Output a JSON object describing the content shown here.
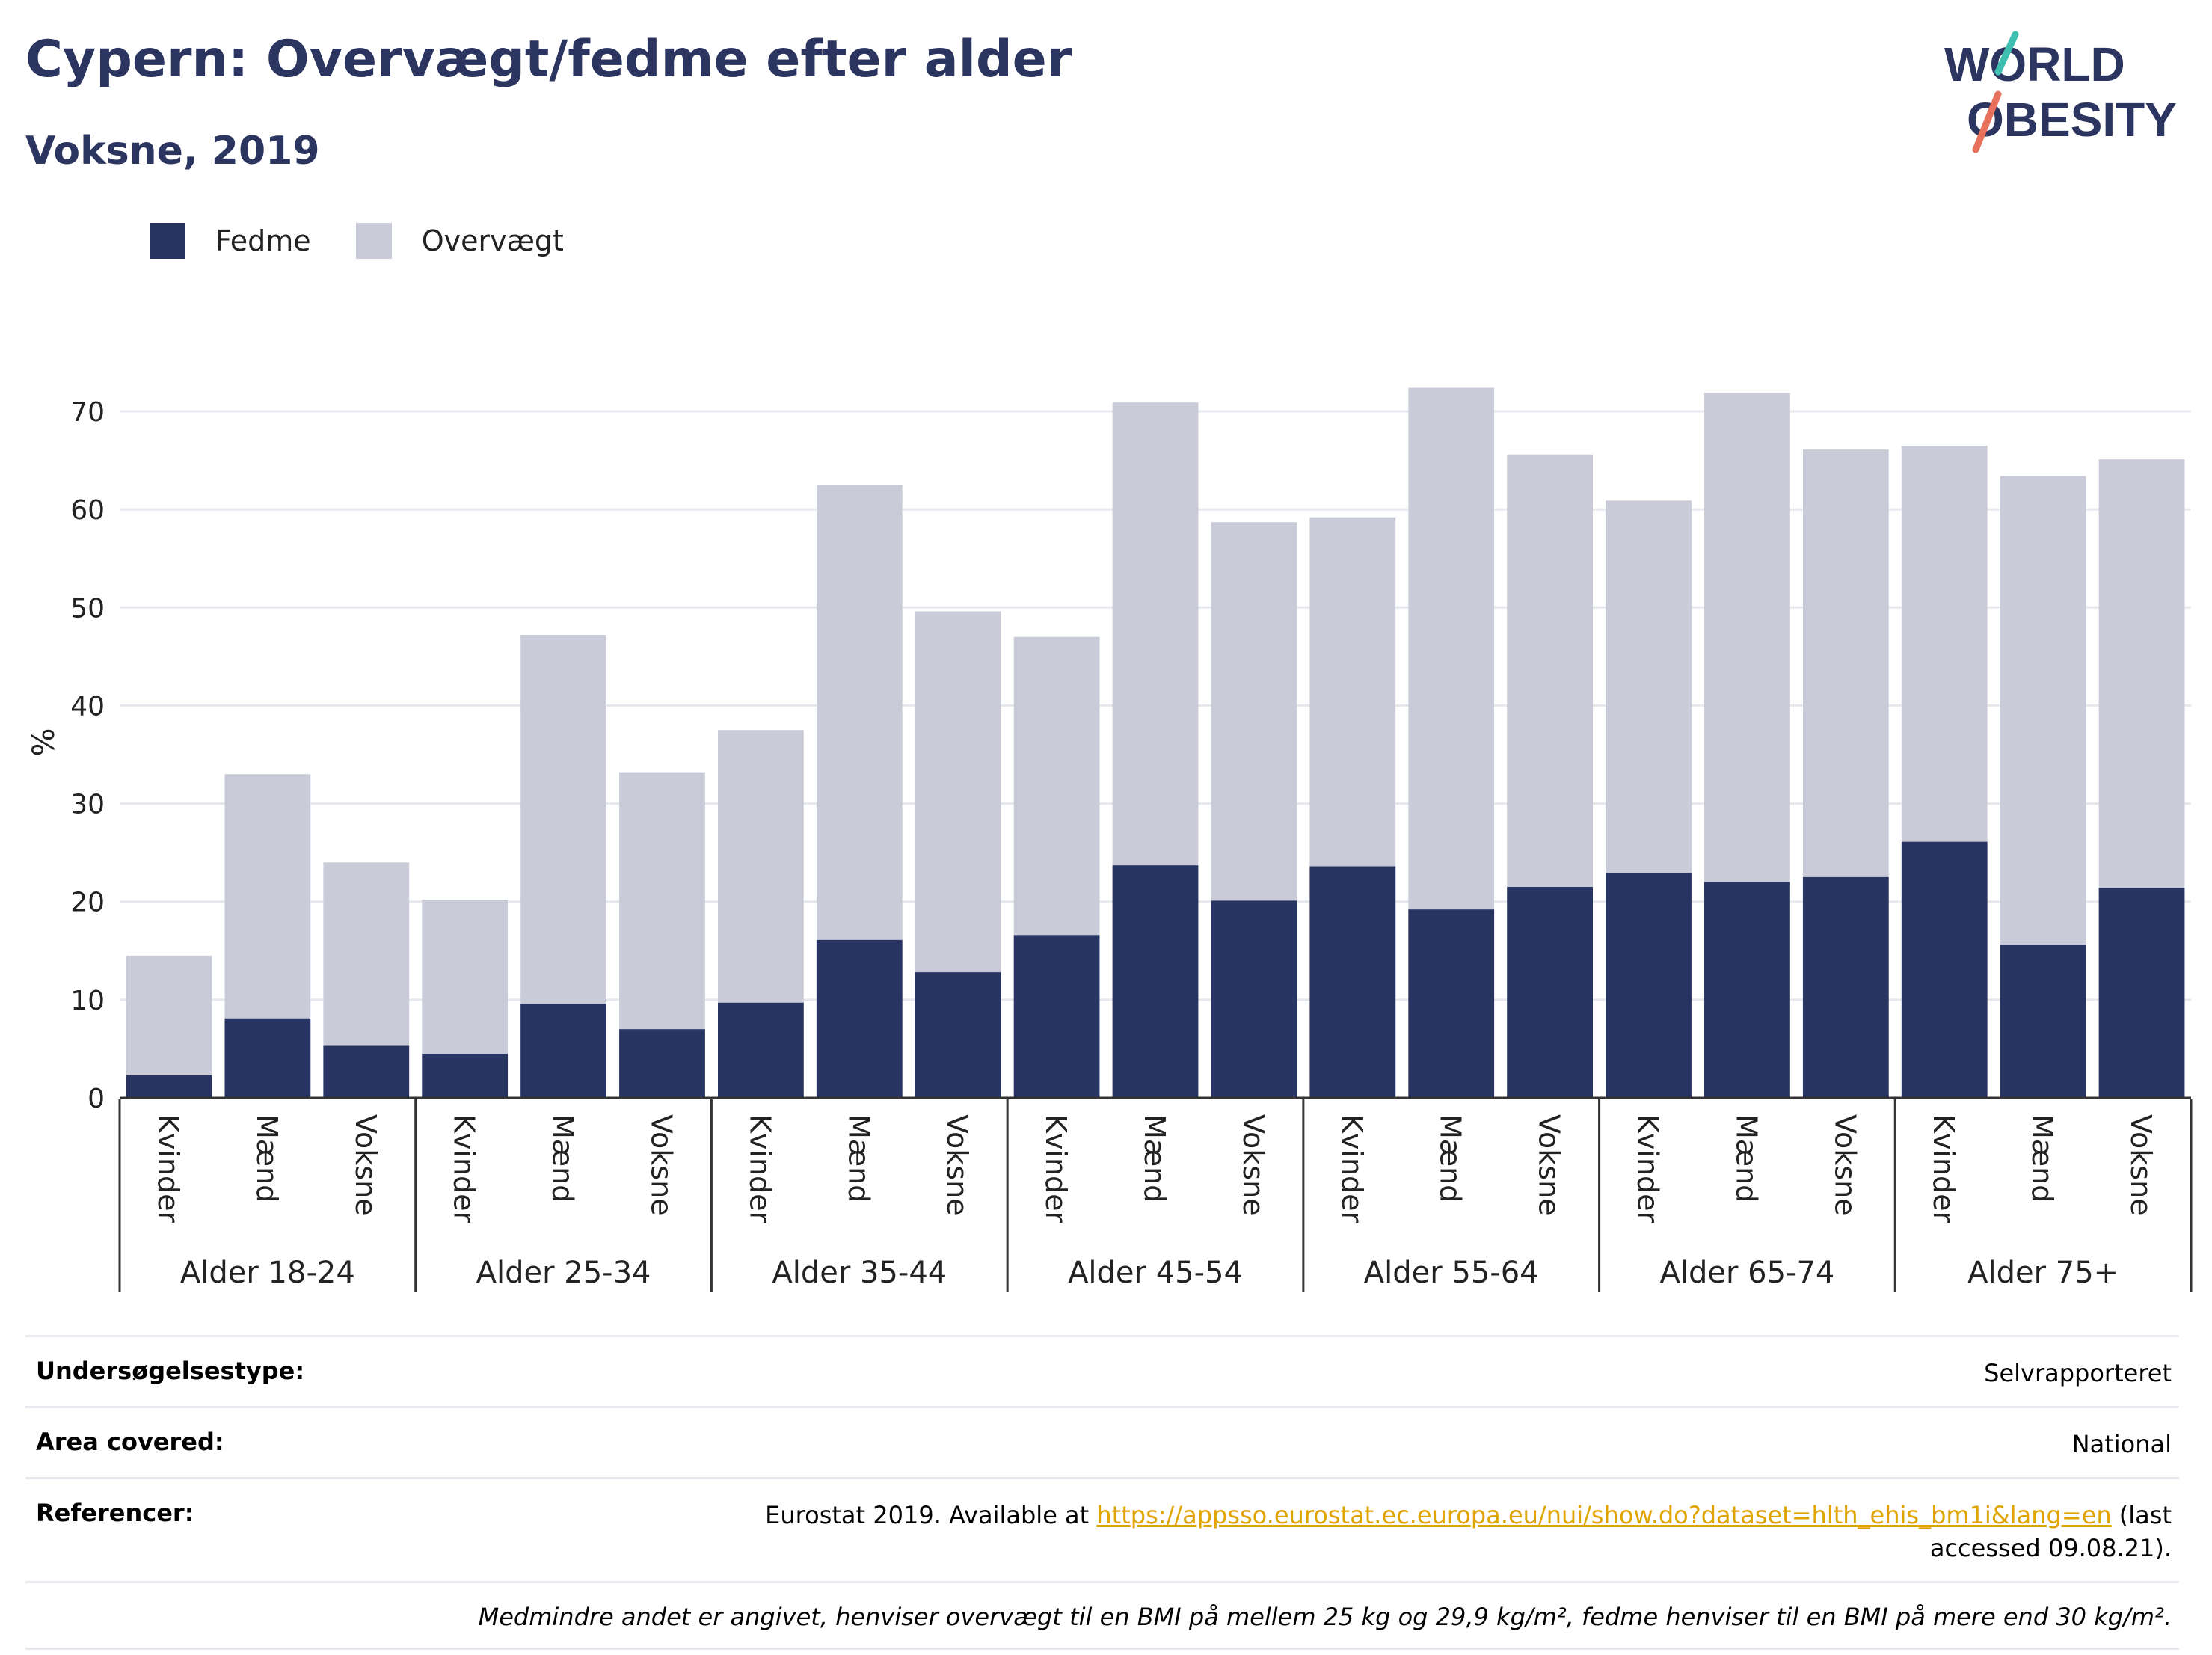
{
  "header": {
    "title": "Cypern: Overvægt/fedme efter alder",
    "subtitle": "Voksne, 2019"
  },
  "logo": {
    "line1": "WORLD",
    "line2": "OBESITY"
  },
  "colors": {
    "fedme": "#283462",
    "overvaegt": "#c9cbd8",
    "title": "#2b3560",
    "link": "#e0a400",
    "grid": "#e6e8ee"
  },
  "legend": [
    {
      "label": "Fedme",
      "color": "#283462"
    },
    {
      "label": "Overvægt",
      "color": "#c9cbd8"
    }
  ],
  "chart_data": {
    "type": "bar",
    "stacked": "overlay",
    "ylabel": "%",
    "ylim": [
      0,
      75
    ],
    "yticks": [
      0,
      10,
      20,
      30,
      40,
      50,
      60,
      70
    ],
    "grid": true,
    "legend_position": "top-left",
    "groups": [
      {
        "label": "Alder 18-24",
        "bars": [
          {
            "label": "Kvinder",
            "fedme": 2.3,
            "overvaegt": 14.5
          },
          {
            "label": "Mænd",
            "fedme": 8.1,
            "overvaegt": 33.0
          },
          {
            "label": "Voksne",
            "fedme": 5.3,
            "overvaegt": 24.0
          }
        ]
      },
      {
        "label": "Alder 25-34",
        "bars": [
          {
            "label": "Kvinder",
            "fedme": 4.5,
            "overvaegt": 20.2
          },
          {
            "label": "Mænd",
            "fedme": 9.6,
            "overvaegt": 47.2
          },
          {
            "label": "Voksne",
            "fedme": 7.0,
            "overvaegt": 33.2
          }
        ]
      },
      {
        "label": "Alder 35-44",
        "bars": [
          {
            "label": "Kvinder",
            "fedme": 9.7,
            "overvaegt": 37.5
          },
          {
            "label": "Mænd",
            "fedme": 16.1,
            "overvaegt": 62.5
          },
          {
            "label": "Voksne",
            "fedme": 12.8,
            "overvaegt": 49.6
          }
        ]
      },
      {
        "label": "Alder 45-54",
        "bars": [
          {
            "label": "Kvinder",
            "fedme": 16.6,
            "overvaegt": 47.0
          },
          {
            "label": "Mænd",
            "fedme": 23.7,
            "overvaegt": 70.9
          },
          {
            "label": "Voksne",
            "fedme": 20.1,
            "overvaegt": 58.7
          }
        ]
      },
      {
        "label": "Alder 55-64",
        "bars": [
          {
            "label": "Kvinder",
            "fedme": 23.6,
            "overvaegt": 59.2
          },
          {
            "label": "Mænd",
            "fedme": 19.2,
            "overvaegt": 72.4
          },
          {
            "label": "Voksne",
            "fedme": 21.5,
            "overvaegt": 65.6
          }
        ]
      },
      {
        "label": "Alder 65-74",
        "bars": [
          {
            "label": "Kvinder",
            "fedme": 22.9,
            "overvaegt": 60.9
          },
          {
            "label": "Mænd",
            "fedme": 22.0,
            "overvaegt": 71.9
          },
          {
            "label": "Voksne",
            "fedme": 22.5,
            "overvaegt": 66.1
          }
        ]
      },
      {
        "label": "Alder 75+",
        "bars": [
          {
            "label": "Kvinder",
            "fedme": 26.1,
            "overvaegt": 66.5
          },
          {
            "label": "Mænd",
            "fedme": 15.6,
            "overvaegt": 63.4
          },
          {
            "label": "Voksne",
            "fedme": 21.4,
            "overvaegt": 65.1
          }
        ]
      }
    ]
  },
  "info": {
    "survey_type_label": "Undersøgelsestype:",
    "survey_type_value": "Selvrapporteret",
    "area_label": "Area covered:",
    "area_value": "National",
    "references_label": "Referencer:",
    "references_prefix": "Eurostat 2019. Available at ",
    "references_link": "https://appsso.eurostat.ec.europa.eu/nui/show.do?dataset=hlth_ehis_bm1i&lang=en",
    "references_suffix": " (last accessed 09.08.21).",
    "note": "Medmindre andet er angivet, henviser overvægt til en BMI på mellem 25 kg og 29,9 kg/m², fedme henviser til en BMI på mere end 30 kg/m²."
  }
}
